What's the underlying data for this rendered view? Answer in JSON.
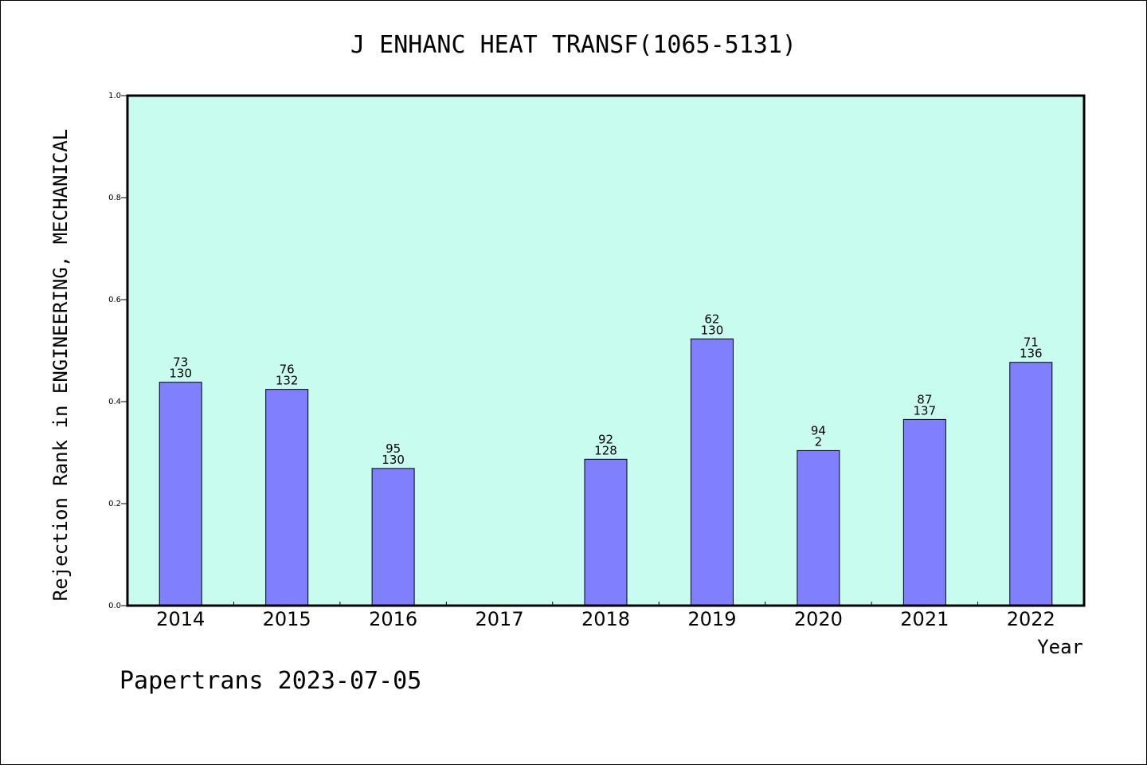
{
  "chart_data": {
    "type": "bar",
    "title": "J ENHANC HEAT TRANSF(1065-5131)",
    "xlabel": "Year",
    "ylabel": "Rejection Rank in ENGINEERING, MECHANICAL",
    "ylim": [
      0.0,
      1.0
    ],
    "yticks": [
      "0.0",
      "0.2",
      "0.4",
      "0.6",
      "0.8",
      "1.0"
    ],
    "categories": [
      "2014",
      "2015",
      "2016",
      "2017",
      "2018",
      "2019",
      "2020",
      "2021",
      "2022"
    ],
    "values": [
      0.438,
      0.424,
      0.269,
      null,
      0.287,
      0.523,
      0.304,
      0.365,
      0.477
    ],
    "bar_labels_top": [
      "73",
      "76",
      "95",
      "",
      "92",
      "62",
      "94",
      "87",
      "71"
    ],
    "bar_labels_bottom": [
      "130",
      "132",
      "130",
      "",
      "128",
      "130",
      "2",
      "137",
      "136"
    ],
    "grid": false,
    "colors": {
      "plot_background": "#c8fcee",
      "bar_fill": "#8080ff",
      "bar_stroke": "#000000"
    }
  },
  "footer": "Papertrans 2023-07-05"
}
